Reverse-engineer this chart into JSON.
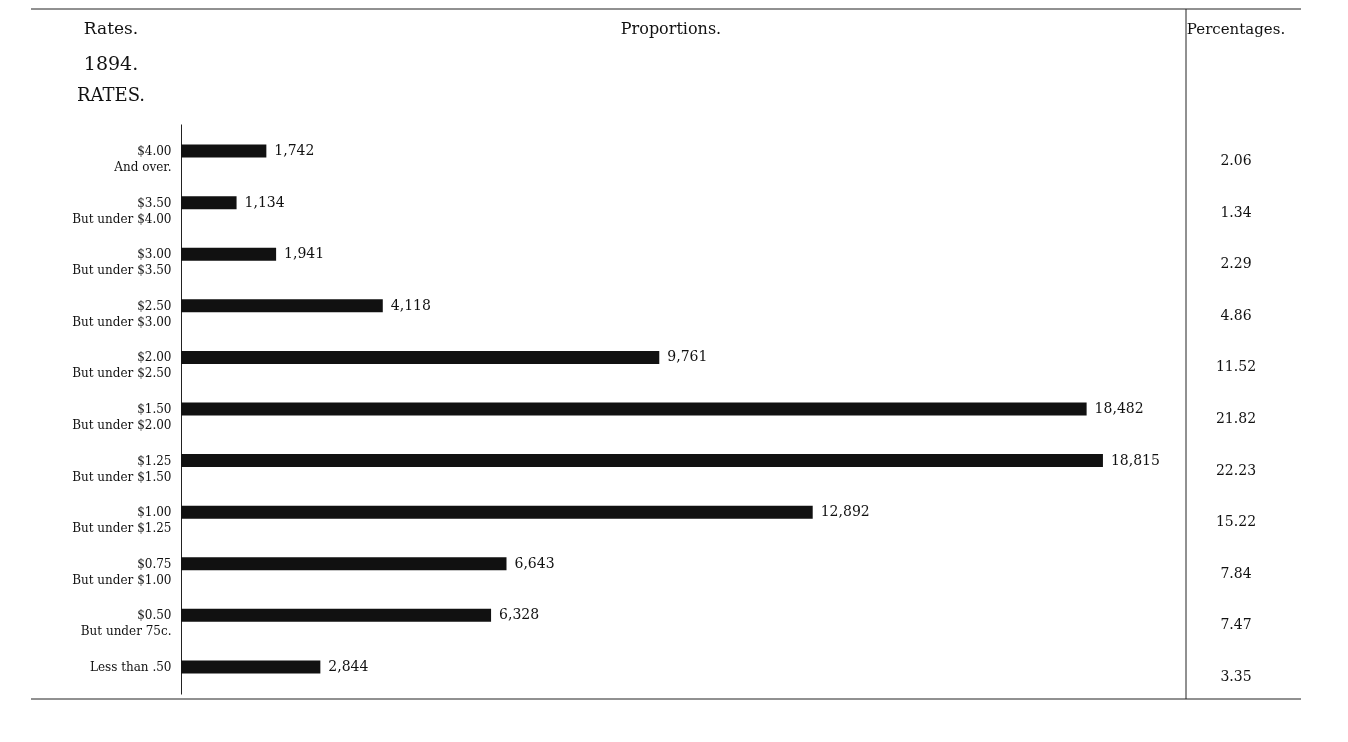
{
  "chart_data": {
    "type": "bar",
    "orientation": "horizontal",
    "color": "#111111",
    "categories": [
      "$4.00\nAnd over.",
      "$3.50\nBut under $4.00",
      "$3.00\nBut under $3.50",
      "$2.50\nBut under $3.00",
      "$2.00\nBut under $2.50",
      "$1.50\nBut under $2.00",
      "$1.25\nBut under $1.50",
      "$1.00\nBut under $1.25",
      "$0.75\nBut under $1.00",
      "$0.50\nBut under 75c.",
      "Less than .50"
    ],
    "values": [
      1742,
      1134,
      1941,
      4118,
      9761,
      18482,
      18815,
      12892,
      6643,
      6328,
      2844
    ],
    "value_labels": [
      "1,742",
      "1,134",
      "1,941",
      "4,118",
      "9,761",
      "18,482",
      "18,815",
      "12,892",
      "6,643",
      "6,328",
      "2,844"
    ],
    "annotations": [
      "Rates.",
      "Proportions.",
      "Percentages.",
      "1894.",
      "RATES.",
      "2.06",
      "1.34",
      "2.29",
      "4.86",
      "11.52",
      "21.82",
      "22.23",
      "15.22",
      "7.84",
      "7.47",
      "3.35"
    ],
    "grid": false
  }
}
